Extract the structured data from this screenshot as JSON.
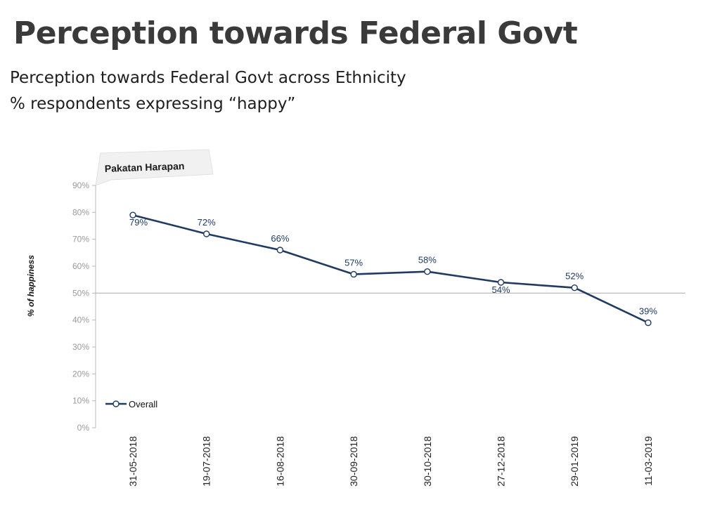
{
  "slide": {
    "title": "Perception towards Federal Govt",
    "subtitle_line1": "Perception towards Federal Govt across Ethnicity",
    "subtitle_line2": "% respondents expressing “happy”"
  },
  "chart_data": {
    "type": "line",
    "title": "",
    "tag": "Pakatan Harapan",
    "xlabel": "",
    "ylabel": "% of happiness",
    "categories": [
      "31-05-2018",
      "19-07-2018",
      "16-08-2018",
      "30-09-2018",
      "30-10-2018",
      "27-12-2018",
      "29-01-2019",
      "11-03-2019"
    ],
    "series": [
      {
        "name": "Overall",
        "values": [
          79,
          72,
          66,
          57,
          58,
          54,
          52,
          39
        ],
        "labels": [
          "79%",
          "72%",
          "66%",
          "57%",
          "58%",
          "54%",
          "52%",
          "39%"
        ],
        "label_placement": [
          "below",
          "above",
          "above",
          "above",
          "above",
          "below",
          "above",
          "above"
        ]
      }
    ],
    "ylim": [
      0,
      90
    ],
    "yticks": [
      0,
      10,
      20,
      30,
      40,
      50,
      60,
      70,
      80,
      90
    ],
    "ytick_labels": [
      "0%",
      "10%",
      "20%",
      "30%",
      "40%",
      "50%",
      "60%",
      "70%",
      "80%",
      "90%"
    ],
    "reference_line": 50,
    "grid": false,
    "legend_position": "bottom-left",
    "colors": {
      "line": "#1f3a63",
      "marker_fill": "#ffffff",
      "axis": "#b8b8b8",
      "reference": "#b3b3b3",
      "tag_fill": "#f2f2f2"
    }
  }
}
